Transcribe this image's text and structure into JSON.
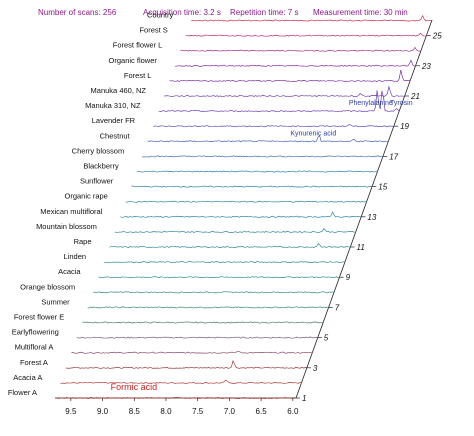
{
  "header": {
    "scans": "Number of scans: 256",
    "acq": "Acquisition time: 3.2 s",
    "rep": "Repetition time:  7 s",
    "meas": "Measurement time: 30 min"
  },
  "chart_data": {
    "type": "line",
    "subtype": "stacked-nmr-spectra",
    "x_ticks": [
      "9.5",
      "9.0",
      "8.5",
      "8.0",
      "7.5",
      "7.0",
      "6.5",
      "6.0"
    ],
    "xlim": [
      9.75,
      5.95
    ],
    "x_reversed": true,
    "row_numbers": [
      "1",
      "3",
      "5",
      "7",
      "9",
      "11",
      "13",
      "15",
      "17",
      "19",
      "21",
      "23",
      "25"
    ],
    "series": [
      {
        "name": "Flower A",
        "color": "#b03030",
        "peaks": [
          [
            8.32,
            0.8
          ]
        ]
      },
      {
        "name": "Acacia A",
        "color": "#b84040",
        "peaks": [
          [
            7.14,
            3
          ]
        ]
      },
      {
        "name": "Forest A",
        "color": "#9a3a3a",
        "peaks": [
          [
            7.11,
            8
          ]
        ]
      },
      {
        "name": "Multifloral  A",
        "color": "#8a4a6a",
        "peaks": [
          [
            7.12,
            2
          ]
        ]
      },
      {
        "name": "Earlyflowering",
        "color": "#7a5a7a",
        "peaks": []
      },
      {
        "name": "Forest flower E",
        "color": "#4a7a6a",
        "peaks": []
      },
      {
        "name": "Summer",
        "color": "#3a8a7a",
        "peaks": []
      },
      {
        "name": "Orange blossom",
        "color": "#3a8a8a",
        "peaks": []
      },
      {
        "name": "Acacia",
        "color": "#2f8f8f",
        "peaks": []
      },
      {
        "name": "Linden",
        "color": "#2f8c94",
        "peaks": []
      },
      {
        "name": "Rape",
        "color": "#2f8a98",
        "peaks": [
          [
            6.45,
            4
          ]
        ]
      },
      {
        "name": "Mountain blossom",
        "color": "#2f889c",
        "peaks": [
          [
            6.45,
            4
          ]
        ]
      },
      {
        "name": "Mexican multifloral",
        "color": "#2f86a0",
        "peaks": [
          [
            6.4,
            5
          ]
        ]
      },
      {
        "name": "Organic rape",
        "color": "#2f84a4",
        "peaks": []
      },
      {
        "name": "Sunflower",
        "color": "#2f82a8",
        "peaks": []
      },
      {
        "name": "Blackberry",
        "color": "#2f80ac",
        "peaks": []
      },
      {
        "name": "Cherry blossom",
        "color": "#3f70b0",
        "peaks": []
      },
      {
        "name": "Chestnut",
        "color": "#4a60b8",
        "peaks": [
          [
            7.05,
            7
          ],
          [
            6.5,
            2
          ]
        ]
      },
      {
        "name": "Lavender FR",
        "color": "#5a50b8",
        "peaks": [
          [
            6.65,
            2
          ]
        ]
      },
      {
        "name": "Manuka 310, NZ",
        "color": "#6a40b8",
        "peaks": [
          [
            6.3,
            22
          ],
          [
            6.22,
            24
          ],
          [
            6.0,
            3
          ]
        ]
      },
      {
        "name": "Manuka 460, NZ",
        "color": "#7040b0",
        "peaks": [
          [
            6.65,
            3
          ],
          [
            6.2,
            10
          ]
        ]
      },
      {
        "name": "Forest L",
        "color": "#7a30a8",
        "peaks": [
          [
            6.1,
            11
          ]
        ]
      },
      {
        "name": "Organic flower",
        "color": "#8a30a0",
        "peaks": [
          [
            6.03,
            6
          ]
        ]
      },
      {
        "name": "Forest flower L",
        "color": "#9a3090",
        "peaks": [
          [
            6.05,
            3
          ]
        ]
      },
      {
        "name": "Forest S",
        "color": "#b03070",
        "peaks": [
          [
            6.05,
            2
          ]
        ]
      },
      {
        "name": "Country",
        "color": "#c03050",
        "peaks": [
          [
            6.1,
            5
          ]
        ]
      }
    ],
    "annotations": [
      {
        "text": "Formic acid",
        "x": 8.4,
        "row": "Flower A"
      },
      {
        "text": "Kynurenic acid",
        "x": 7.5,
        "row": "Chestnut"
      },
      {
        "text": "Phenylalanine",
        "x": 6.75,
        "row": "Manuka 310, NZ"
      },
      {
        "text": "Tyrosin",
        "x": 6.1,
        "row": "Manuka 310, NZ"
      }
    ]
  }
}
